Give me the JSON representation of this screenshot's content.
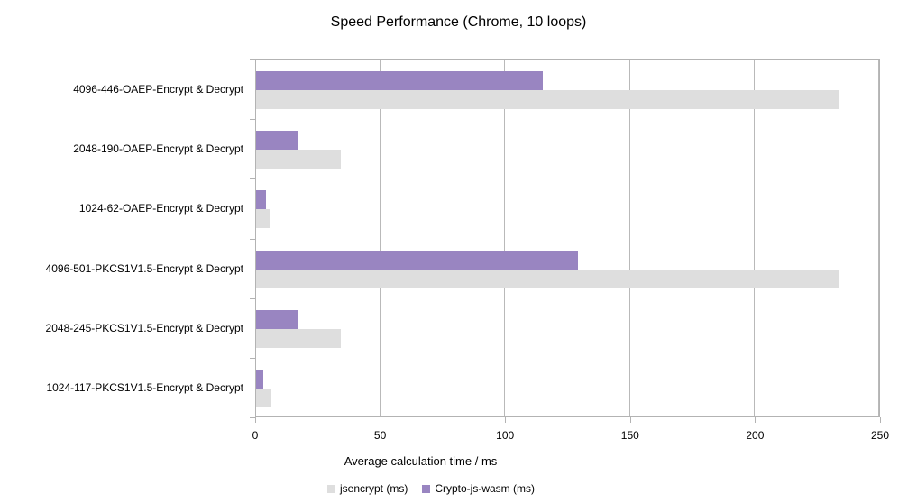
{
  "chart_data": {
    "type": "bar",
    "orientation": "horizontal",
    "title": "Speed Performance (Chrome, 10 loops)",
    "xlabel": "Average calculation time / ms",
    "ylabel": "",
    "xlim": [
      0,
      250
    ],
    "xticks": [
      0,
      50,
      100,
      150,
      200,
      250
    ],
    "grid": true,
    "legend_position": "bottom",
    "categories": [
      "4096-446-OAEP-Encrypt & Decrypt",
      "2048-190-OAEP-Encrypt & Decrypt",
      "1024-62-OAEP-Encrypt & Decrypt",
      "4096-501-PKCS1V1.5-Encrypt & Decrypt",
      "2048-245-PKCS1V1.5-Encrypt & Decrypt",
      "1024-117-PKCS1V1.5-Encrypt & Decrypt"
    ],
    "series": [
      {
        "name": "jsencrypt (ms)",
        "color": "#dedede",
        "values": [
          234,
          34,
          5.5,
          234,
          34,
          6
        ]
      },
      {
        "name": "Crypto-js-wasm (ms)",
        "color": "#9985c1",
        "values": [
          115,
          17,
          4,
          129,
          17,
          3
        ]
      }
    ],
    "colors": {
      "grid": "#b9b9b9",
      "axis": "#b3b3b3",
      "text": "#000000"
    }
  }
}
